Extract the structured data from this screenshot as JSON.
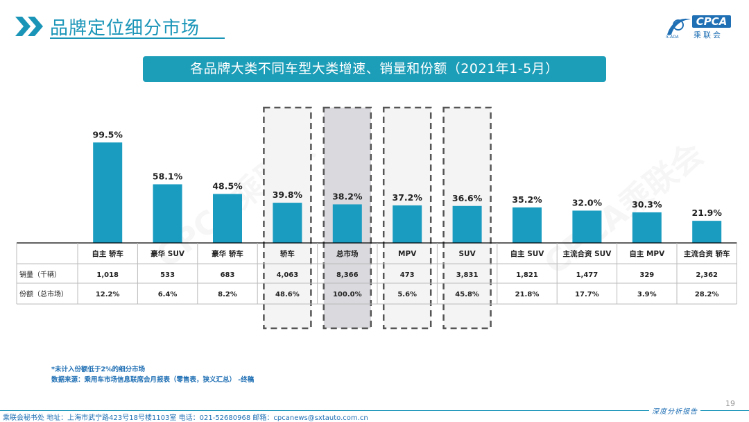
{
  "header": {
    "title": "品牌定位细分市场",
    "logo_text": "CPCA",
    "logo_cn": "乘联会",
    "logo_sub": "ICADA"
  },
  "banner": {
    "text": "各品牌大类不同车型大类增速、销量和份额（2021年1-5月）"
  },
  "watermarks": [
    "CPCA乘联会",
    "CPCA乘联会"
  ],
  "colors": {
    "bar": "#1a9cc0",
    "accent": "#1a95b8",
    "dashed_box": "#f4f4f4",
    "highlight_box": "#d9d9de",
    "dash": "#555555"
  },
  "chart_data": {
    "type": "bar",
    "title": "各品牌大类不同车型大类增速、销量和份额（2021年1-5月）",
    "categories": [
      "自主 轿车",
      "豪华 SUV",
      "豪华 轿车",
      "轿车",
      "总市场",
      "MPV",
      "SUV",
      "自主 SUV",
      "主流合资 SUV",
      "自主 MPV",
      "主流合资 轿车"
    ],
    "values": [
      99.5,
      58.1,
      48.5,
      39.8,
      38.2,
      37.2,
      36.6,
      35.2,
      32.0,
      30.3,
      21.9
    ],
    "value_labels": [
      "99.5%",
      "58.1%",
      "48.5%",
      "39.8%",
      "38.2%",
      "37.2%",
      "36.6%",
      "35.2%",
      "32.0%",
      "30.3%",
      "21.9%"
    ],
    "ylim": [
      0,
      110
    ],
    "dashed_categories": [
      3,
      4,
      5,
      6
    ],
    "highlight_category": 4,
    "table": {
      "rows": [
        {
          "label": "销量（千辆）",
          "values": [
            "1,018",
            "533",
            "683",
            "4,063",
            "8,366",
            "473",
            "3,831",
            "1,821",
            "1,477",
            "329",
            "2,362"
          ]
        },
        {
          "label": "份额（总市场）",
          "values": [
            "12.2%",
            "6.4%",
            "8.2%",
            "48.6%",
            "100.0%",
            "5.6%",
            "45.8%",
            "21.8%",
            "17.7%",
            "3.9%",
            "28.2%"
          ]
        }
      ]
    }
  },
  "footnotes": {
    "note": "*未计入份额低于2%的细分市场",
    "source": "数据来源：乘用车市场信息联席会月报表（零售表，狭义汇总）  -终稿"
  },
  "footer": {
    "page_number": "19",
    "address": "乘联会秘书处   地址：上海市武宁路423号18号楼1103室   电话：021-52680968   邮箱：cpcanews@sxtauto.com.cn",
    "tagline": "深度分析报告"
  }
}
